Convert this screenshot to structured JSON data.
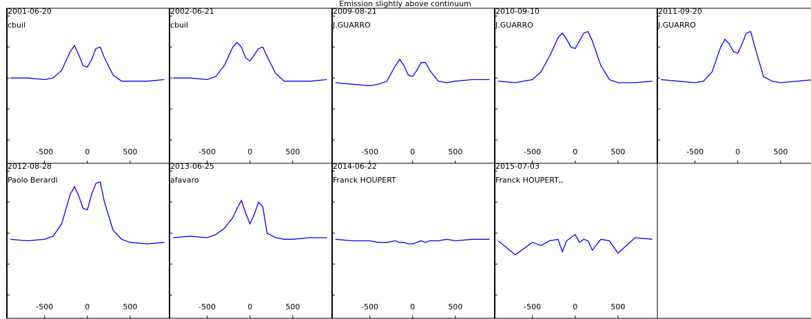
{
  "title": "Emission slightly above continuum",
  "chart_data": [
    {
      "type": "line",
      "title": "2001-06-20",
      "subtitle": "cbuil",
      "color": "#0000ff",
      "x": [
        -900,
        -700,
        -500,
        -400,
        -300,
        -200,
        -150,
        -100,
        -50,
        0,
        50,
        100,
        150,
        200,
        300,
        400,
        500,
        700,
        900
      ],
      "values": [
        1.0,
        1.0,
        0.99,
        1.0,
        1.05,
        1.17,
        1.21,
        1.15,
        1.08,
        1.07,
        1.12,
        1.19,
        1.2,
        1.13,
        1.02,
        0.98,
        0.98,
        0.98,
        0.99
      ],
      "xlim": [
        -940,
        960
      ],
      "ylim": [
        0.45,
        1.45
      ],
      "xticks": [
        -500,
        0,
        500
      ],
      "yticks": [
        0.6,
        0.8,
        1,
        1.2,
        1.4
      ]
    },
    {
      "type": "line",
      "title": "2002-06-21",
      "subtitle": "cbuil",
      "color": "#0000ff",
      "x": [
        -900,
        -700,
        -500,
        -400,
        -300,
        -200,
        -150,
        -100,
        -50,
        0,
        50,
        100,
        150,
        200,
        300,
        400,
        500,
        700,
        900
      ],
      "values": [
        1.0,
        1.0,
        0.99,
        1.01,
        1.08,
        1.2,
        1.23,
        1.2,
        1.13,
        1.11,
        1.15,
        1.19,
        1.2,
        1.14,
        1.03,
        0.98,
        0.98,
        0.98,
        0.99
      ],
      "xlim": [
        -940,
        960
      ],
      "ylim": [
        0.45,
        1.45
      ],
      "xticks": [
        -500,
        0,
        500
      ],
      "yticks": [
        0.6,
        0.8,
        1,
        1.2,
        1.4
      ]
    },
    {
      "type": "line",
      "title": "2009-08-21",
      "subtitle": "J.GUARRO",
      "color": "#0000ff",
      "x": [
        -900,
        -700,
        -500,
        -400,
        -300,
        -200,
        -150,
        -100,
        -50,
        0,
        50,
        100,
        150,
        200,
        300,
        400,
        500,
        700,
        900
      ],
      "values": [
        0.97,
        0.96,
        0.95,
        0.96,
        0.98,
        1.08,
        1.12,
        1.08,
        1.02,
        1.01,
        1.05,
        1.1,
        1.1,
        1.05,
        0.98,
        0.97,
        0.98,
        0.99,
        0.99
      ],
      "xlim": [
        -940,
        960
      ],
      "ylim": [
        0.45,
        1.45
      ],
      "xticks": [
        -500,
        0,
        500
      ],
      "yticks": [
        0.6,
        0.8,
        1,
        1.2,
        1.4
      ]
    },
    {
      "type": "line",
      "title": "2010-09-10",
      "subtitle": "J.GUARRO",
      "color": "#0000ff",
      "x": [
        -900,
        -700,
        -500,
        -400,
        -300,
        -200,
        -150,
        -100,
        -50,
        0,
        50,
        100,
        150,
        200,
        300,
        400,
        500,
        700,
        900
      ],
      "values": [
        0.98,
        0.97,
        0.99,
        1.04,
        1.14,
        1.26,
        1.29,
        1.25,
        1.2,
        1.19,
        1.24,
        1.29,
        1.3,
        1.24,
        1.08,
        0.99,
        0.97,
        0.97,
        0.98
      ],
      "xlim": [
        -940,
        960
      ],
      "ylim": [
        0.45,
        1.45
      ],
      "xticks": [
        -500,
        0,
        500
      ],
      "yticks": [
        0.6,
        0.8,
        1,
        1.2,
        1.4
      ]
    },
    {
      "type": "line",
      "title": "2011-09-20",
      "subtitle": "J.GUARRO",
      "color": "#0000ff",
      "x": [
        -900,
        -700,
        -500,
        -400,
        -300,
        -200,
        -150,
        -100,
        -50,
        0,
        50,
        100,
        150,
        200,
        300,
        400,
        500,
        700,
        900
      ],
      "values": [
        0.99,
        0.98,
        0.97,
        0.98,
        1.04,
        1.2,
        1.25,
        1.22,
        1.17,
        1.16,
        1.22,
        1.29,
        1.3,
        1.2,
        1.01,
        0.98,
        0.97,
        0.98,
        0.99
      ],
      "xlim": [
        -940,
        960
      ],
      "ylim": [
        0.45,
        1.45
      ],
      "xticks": [
        -500,
        0,
        500
      ],
      "yticks": [
        0.6,
        0.8,
        1,
        1.2,
        1.4
      ]
    },
    {
      "type": "line",
      "title": "2012-08-28",
      "subtitle": "Paolo Berardi",
      "color": "#0000ff",
      "x": [
        -900,
        -700,
        -500,
        -400,
        -300,
        -200,
        -150,
        -100,
        -50,
        0,
        50,
        100,
        150,
        200,
        300,
        400,
        500,
        700,
        900
      ],
      "values": [
        0.96,
        0.95,
        0.96,
        0.98,
        1.06,
        1.25,
        1.3,
        1.24,
        1.16,
        1.15,
        1.25,
        1.32,
        1.33,
        1.2,
        1.02,
        0.96,
        0.94,
        0.93,
        0.94
      ],
      "xlim": [
        -940,
        960
      ],
      "ylim": [
        0.45,
        1.45
      ],
      "xticks": [
        -500,
        0,
        500
      ],
      "yticks": [
        0.6,
        0.8,
        1,
        1.2,
        1.4
      ]
    },
    {
      "type": "line",
      "title": "2013-06-25",
      "subtitle": "afavaro",
      "color": "#0000ff",
      "x": [
        -900,
        -700,
        -500,
        -400,
        -300,
        -200,
        -150,
        -100,
        -50,
        0,
        50,
        100,
        150,
        200,
        300,
        400,
        500,
        700,
        900
      ],
      "values": [
        0.97,
        0.98,
        0.97,
        0.99,
        1.03,
        1.1,
        1.16,
        1.21,
        1.13,
        1.06,
        1.12,
        1.2,
        1.17,
        1.0,
        0.97,
        0.96,
        0.96,
        0.97,
        0.97
      ],
      "xlim": [
        -940,
        960
      ],
      "ylim": [
        0.45,
        1.45
      ],
      "xticks": [
        -500,
        0,
        500
      ],
      "yticks": [
        0.6,
        0.8,
        1,
        1.2,
        1.4
      ]
    },
    {
      "type": "line",
      "title": "2014-06-22",
      "subtitle": "Franck HOUPERT",
      "color": "#0000ff",
      "x": [
        -900,
        -700,
        -500,
        -400,
        -300,
        -200,
        -150,
        -100,
        -50,
        0,
        50,
        100,
        150,
        200,
        300,
        400,
        500,
        700,
        900
      ],
      "values": [
        0.96,
        0.95,
        0.95,
        0.94,
        0.94,
        0.95,
        0.94,
        0.94,
        0.93,
        0.93,
        0.94,
        0.95,
        0.94,
        0.95,
        0.95,
        0.96,
        0.95,
        0.96,
        0.96
      ],
      "xlim": [
        -940,
        960
      ],
      "ylim": [
        0.45,
        1.45
      ],
      "xticks": [
        -500,
        0,
        500
      ],
      "yticks": [
        0.6,
        0.8,
        1,
        1.2,
        1.4
      ]
    },
    {
      "type": "line",
      "title": "2015-07-03",
      "subtitle": "Franck HOUPERT,,",
      "color": "#0000ff",
      "x": [
        -900,
        -700,
        -500,
        -400,
        -300,
        -200,
        -150,
        -100,
        -50,
        0,
        50,
        100,
        150,
        200,
        300,
        400,
        500,
        700,
        900
      ],
      "values": [
        0.95,
        0.86,
        0.94,
        0.92,
        0.95,
        0.96,
        0.88,
        0.95,
        0.97,
        0.99,
        0.94,
        0.96,
        0.95,
        0.89,
        0.96,
        0.95,
        0.87,
        0.97,
        0.96
      ],
      "xlim": [
        -940,
        960
      ],
      "ylim": [
        0.45,
        1.45
      ],
      "xticks": [
        -500,
        0,
        500
      ],
      "yticks": [
        0.6,
        0.8,
        1,
        1.2,
        1.4
      ]
    }
  ]
}
